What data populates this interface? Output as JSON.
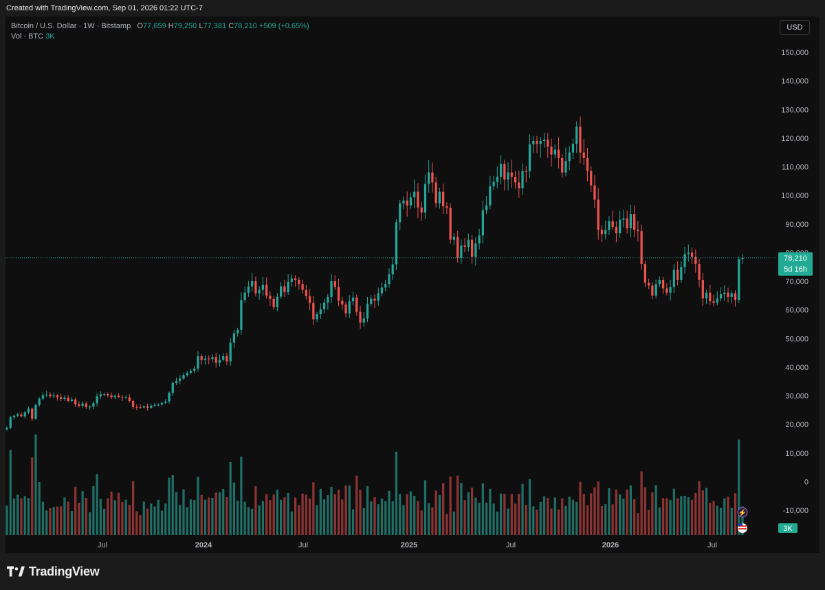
{
  "header": {
    "created": "Created with TradingView.com, Sep 01, 2026 01:22 UTC-7"
  },
  "legend": {
    "symbol": "Bitcoin / U.S. Dollar · 1W · Bitstamp",
    "open_label": "O",
    "open": "77,659",
    "high_label": "H",
    "high": "79,250",
    "low_label": "L",
    "low": "77,381",
    "close_label": "C",
    "close": "78,210",
    "change": "+509 (+0.65%)",
    "vol_label": "Vol · BTC",
    "vol_value": "3K"
  },
  "currency_button": "USD",
  "brand": "TradingView",
  "colors": {
    "up": "#26a69a",
    "down": "#ef5350",
    "vol_up": "#1f6f67",
    "vol_down": "#8c3434",
    "background": "#0f0f0f"
  },
  "chart_data": {
    "type": "candlestick",
    "interval": "1W",
    "y_ticks": [
      "150,000",
      "140,000",
      "130,000",
      "120,000",
      "110,000",
      "100,000",
      "90,000",
      "80,000",
      "70,000",
      "60,000",
      "50,000",
      "40,000",
      "30,000",
      "20,000",
      "10,000",
      "0",
      "-10,000"
    ],
    "x_ticks": [
      "Jul",
      "2024",
      "Jul",
      "2025",
      "Jul",
      "2026",
      "Jul"
    ],
    "ylim": [
      -10000,
      150000
    ],
    "last_price": "78,210",
    "countdown": "5d 16h",
    "last_volume": "3K",
    "closes": [
      18800,
      22500,
      23000,
      23500,
      22800,
      24200,
      25500,
      22000,
      26800,
      29000,
      30200,
      30400,
      29800,
      30100,
      29500,
      28900,
      29300,
      28200,
      28700,
      27000,
      26500,
      27300,
      26000,
      26200,
      27400,
      29800,
      30500,
      30600,
      30100,
      29500,
      30000,
      29600,
      29300,
      29400,
      28200,
      26100,
      26000,
      25900,
      26300,
      25800,
      26500,
      26800,
      26900,
      27500,
      28000,
      31000,
      34500,
      35200,
      36000,
      37200,
      38000,
      38700,
      39500,
      43800,
      42500,
      43000,
      42800,
      43500,
      41500,
      42600,
      43800,
      42000,
      48500,
      51800,
      53000,
      63500,
      66000,
      68200,
      70000,
      65800,
      67000,
      68800,
      65000,
      63800,
      61000,
      64600,
      68200,
      66200,
      69800,
      71000,
      70500,
      69000,
      67000,
      64800,
      62400,
      56700,
      58500,
      60200,
      62500,
      64500,
      70000,
      68000,
      63200,
      61900,
      58800,
      63000,
      64300,
      59300,
      55600,
      57000,
      62100,
      63900,
      63200,
      65800,
      67800,
      69000,
      72400,
      75900,
      90600,
      97200,
      98200,
      96500,
      99300,
      101300,
      95800,
      94000,
      104000,
      108000,
      104500,
      97300,
      101300,
      96200,
      95700,
      84500,
      85500,
      78200,
      82500,
      82000,
      84500,
      78500,
      83200,
      86000,
      94800,
      96500,
      103200,
      104700,
      106500,
      111000,
      105500,
      108000,
      106500,
      104500,
      102500,
      108500,
      108400,
      117800,
      119000,
      118000,
      119000,
      119500,
      117000,
      114300,
      116000,
      113000,
      108000,
      112000,
      115000,
      118000,
      124000,
      115000,
      113000,
      108500,
      103500,
      98500,
      88000,
      86500,
      88000,
      91000,
      89000,
      86800,
      91500,
      92000,
      88500,
      93500,
      88000,
      87500,
      76000,
      69500,
      68500,
      65000,
      69000,
      70500,
      67500,
      66000,
      68000,
      74000,
      70500,
      75000,
      79500,
      80000,
      78500,
      76000,
      70500,
      64000,
      66000,
      63000,
      62500,
      64000,
      65500,
      66000,
      64500,
      65800,
      63500,
      77700,
      78210
    ]
  }
}
